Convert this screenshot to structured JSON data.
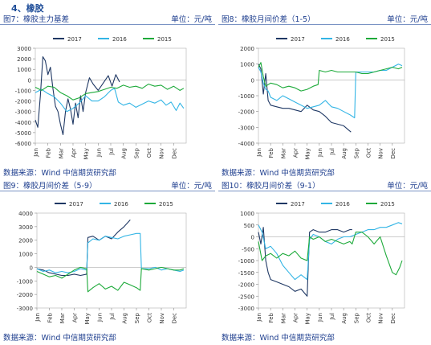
{
  "section": {
    "title": "4、橡胶"
  },
  "colors": {
    "2017": "#1f3864",
    "2016": "#33b5e5",
    "2015": "#1daa3a"
  },
  "panels": [
    {
      "figure": "图7：橡胶主力基差",
      "unit": "单位：元/吨",
      "source": "数据来源：Wind 中信期货研究部"
    },
    {
      "figure": "图8：橡胶月间价差（1-5）",
      "unit": "单位：元/吨",
      "source": "数据来源：Wind 中信期货研究部"
    },
    {
      "figure": "图9：橡胶月间价差（5-9）",
      "unit": "单位：元/吨",
      "source": "数据来源：Wind 中信期货研究部"
    },
    {
      "figure": "图10：橡胶月间价差（9-1）",
      "unit": "单位：元/吨",
      "source": "数据来源：Wind 中信期货研究部"
    }
  ],
  "chart_data": [
    {
      "type": "line",
      "ylim": [
        -6000,
        3000
      ],
      "yticks": [
        3000,
        2000,
        1000,
        0,
        -1000,
        -2000,
        -3000,
        -4000,
        -5000,
        -6000
      ],
      "xticks": [
        "Jan",
        "Feb",
        "Mar",
        "Apr",
        "May",
        "Jun",
        "Jul",
        "Aug",
        "Sep",
        "Oct",
        "Nov",
        "Dec"
      ],
      "legend_position": "top",
      "series": [
        {
          "name": "2017",
          "x": [
            0,
            0.2,
            0.4,
            0.6,
            0.8,
            1.0,
            1.2,
            1.4,
            1.6,
            1.8,
            2.0,
            2.2,
            2.4,
            2.6,
            2.8,
            3.0,
            3.2,
            3.4,
            3.6,
            3.8,
            4.0,
            4.3,
            4.6,
            5.0,
            5.4,
            5.8,
            6.1,
            6.4,
            6.7
          ],
          "y": [
            -3800,
            -4500,
            -1500,
            2200,
            1800,
            500,
            1200,
            -800,
            -2500,
            -3000,
            -4200,
            -5200,
            -3000,
            -1800,
            -2800,
            -4200,
            -2200,
            -3600,
            -1500,
            -3000,
            -1200,
            200,
            -400,
            -1000,
            -300,
            400,
            -600,
            500,
            -200
          ]
        },
        {
          "name": "2016",
          "x": [
            0,
            0.5,
            1.0,
            1.5,
            2.0,
            2.5,
            3.0,
            3.5,
            4.0,
            4.5,
            5.0,
            5.5,
            6.0,
            6.3,
            6.6,
            7.0,
            7.5,
            8.0,
            8.5,
            9.0,
            9.5,
            10.0,
            10.4,
            10.8,
            11.2,
            11.5,
            11.8
          ],
          "y": [
            -1200,
            -900,
            -1300,
            -1600,
            -2200,
            -3000,
            -2700,
            -2200,
            -1500,
            -2000,
            -2000,
            -1600,
            -1000,
            -800,
            -2100,
            -2400,
            -2200,
            -2600,
            -2300,
            -2000,
            -2200,
            -1900,
            -2400,
            -2100,
            -2900,
            -2200,
            -2700
          ]
        },
        {
          "name": "2015",
          "x": [
            0,
            0.5,
            1.0,
            1.5,
            2.0,
            2.5,
            3.0,
            3.5,
            4.0,
            4.5,
            5.0,
            5.5,
            6.0,
            6.5,
            7.0,
            7.5,
            8.0,
            8.5,
            9.0,
            9.5,
            10.0,
            10.5,
            11.0,
            11.5,
            11.8
          ],
          "y": [
            -700,
            -1000,
            -600,
            -700,
            -1200,
            -1500,
            -1900,
            -1700,
            -1300,
            -1200,
            -1100,
            -900,
            -700,
            -800,
            -500,
            -700,
            -600,
            -800,
            -400,
            -600,
            -500,
            -900,
            -600,
            -1000,
            -800
          ]
        }
      ]
    },
    {
      "type": "line",
      "ylim": [
        -4000,
        2000
      ],
      "yticks": [
        2000,
        1000,
        0,
        -1000,
        -2000,
        -3000,
        -4000
      ],
      "xticks": [
        "Jan",
        "Feb",
        "Mar",
        "Apr",
        "May",
        "Jun",
        "Jul",
        "Aug",
        "Sep",
        "Oct",
        "Nov",
        "Dec"
      ],
      "legend_position": "top",
      "series": [
        {
          "name": "2017",
          "x": [
            0,
            0.2,
            0.4,
            0.6,
            0.8,
            1.0,
            1.5,
            2.0,
            2.5,
            3.0,
            3.5,
            4.0,
            4.5,
            5.0,
            5.5,
            6.0,
            6.5,
            7.0,
            7.3,
            7.6
          ],
          "y": [
            1000,
            700,
            -900,
            400,
            -1300,
            -1600,
            -1700,
            -1800,
            -1800,
            -1900,
            -2000,
            -1600,
            -1900,
            -2000,
            -2300,
            -2700,
            -2800,
            -2900,
            -3100,
            -3300
          ]
        },
        {
          "name": "2016",
          "x": [
            0,
            0.2,
            0.4,
            0.6,
            0.8,
            1.0,
            1.5,
            2.0,
            2.5,
            3.0,
            3.5,
            4.0,
            4.5,
            5.0,
            5.5,
            6.0,
            6.5,
            7.0,
            7.5,
            7.9,
            8.0,
            8.5,
            9.0,
            9.5,
            10.0,
            10.5,
            11.0,
            11.5,
            11.8
          ],
          "y": [
            800,
            500,
            -200,
            -600,
            -700,
            -1100,
            -1300,
            -1000,
            -1200,
            -1400,
            -1600,
            -1800,
            -1700,
            -1600,
            -1300,
            -1700,
            -1800,
            -2000,
            -2200,
            -2400,
            500,
            500,
            500,
            500,
            600,
            600,
            800,
            1000,
            900
          ]
        },
        {
          "name": "2015",
          "x": [
            0,
            0.2,
            0.4,
            0.6,
            1.0,
            1.5,
            2.0,
            2.5,
            3.0,
            3.5,
            4.0,
            4.5,
            4.9,
            5.0,
            5.5,
            6.0,
            6.5,
            7.0,
            7.5,
            8.0,
            8.5,
            9.0,
            9.5,
            10.0,
            10.5,
            11.0,
            11.5,
            11.8
          ],
          "y": [
            800,
            1100,
            200,
            -400,
            -200,
            -300,
            -500,
            -400,
            -500,
            -700,
            -600,
            -400,
            -300,
            600,
            500,
            600,
            500,
            500,
            500,
            500,
            400,
            400,
            500,
            600,
            700,
            800,
            700,
            800
          ]
        }
      ]
    },
    {
      "type": "line",
      "ylim": [
        -3000,
        4000
      ],
      "yticks": [
        4000,
        3000,
        2000,
        1000,
        0,
        -1000,
        -2000,
        -3000
      ],
      "xticks": [
        "Jan",
        "Feb",
        "Mar",
        "Apr",
        "May",
        "Jun",
        "Jul",
        "Aug",
        "Sep",
        "Oct",
        "Nov",
        "Dec"
      ],
      "legend_position": "top",
      "series": [
        {
          "name": "2017",
          "x": [
            0,
            0.5,
            1.0,
            1.5,
            2.0,
            2.5,
            3.0,
            3.5,
            4.0,
            4.1,
            4.5,
            5.0,
            5.5,
            6.0,
            6.5,
            7.0,
            7.5
          ],
          "y": [
            -100,
            -200,
            -400,
            -500,
            -600,
            -600,
            -500,
            -600,
            -500,
            2200,
            2300,
            2000,
            2300,
            2100,
            2600,
            3000,
            3500
          ]
        },
        {
          "name": "2016",
          "x": [
            0,
            0.5,
            1.0,
            1.5,
            2.0,
            2.5,
            3.0,
            3.5,
            4.0,
            4.1,
            4.5,
            5.0,
            5.5,
            6.0,
            6.5,
            7.0,
            7.5,
            8.0,
            8.3,
            8.4,
            9.0,
            9.5,
            10.0,
            10.5,
            11.0,
            11.5,
            11.8
          ],
          "y": [
            -100,
            -300,
            -200,
            -400,
            -300,
            -400,
            -300,
            -100,
            -200,
            1800,
            2100,
            2000,
            2300,
            2200,
            2100,
            2300,
            2400,
            2500,
            2500,
            -100,
            -100,
            0,
            -200,
            -100,
            -200,
            -300,
            -200
          ]
        },
        {
          "name": "2015",
          "x": [
            0,
            0.5,
            1.0,
            1.5,
            2.0,
            2.5,
            3.0,
            3.5,
            4.0,
            4.1,
            4.5,
            5.0,
            5.5,
            6.0,
            6.5,
            7.0,
            7.5,
            8.0,
            8.3,
            8.4,
            9.0,
            9.5,
            10.0,
            10.5,
            11.0,
            11.5,
            11.8
          ],
          "y": [
            -300,
            -500,
            -700,
            -600,
            -800,
            -500,
            -200,
            0,
            -100,
            -1800,
            -1500,
            -1200,
            -1600,
            -1400,
            -1700,
            -1100,
            -1300,
            -1500,
            -1700,
            -100,
            -200,
            -100,
            0,
            -100,
            -200,
            -200,
            -100
          ]
        }
      ]
    },
    {
      "type": "line",
      "ylim": [
        -3000,
        1000
      ],
      "yticks": [
        1000,
        500,
        0,
        -500,
        -1000,
        -1500,
        -2000,
        -2500,
        -3000
      ],
      "xticks": [
        "Jan",
        "Feb",
        "Mar",
        "Apr",
        "May",
        "Jun",
        "Jul",
        "Aug",
        "Sep",
        "Oct",
        "Nov",
        "Dec"
      ],
      "legend_position": "top",
      "series": [
        {
          "name": "2017",
          "x": [
            0,
            0.2,
            0.4,
            0.6,
            0.8,
            1.0,
            1.5,
            2.0,
            2.5,
            3.0,
            3.5,
            4.0,
            4.2,
            4.5,
            5.0,
            5.5,
            6.0,
            6.5,
            7.0,
            7.5,
            7.7
          ],
          "y": [
            200,
            -300,
            400,
            -1000,
            -1500,
            -1800,
            -1900,
            -2000,
            -2100,
            -2300,
            -2200,
            -2500,
            200,
            300,
            200,
            200,
            300,
            300,
            200,
            300,
            300
          ]
        },
        {
          "name": "2016",
          "x": [
            0,
            0.3,
            0.6,
            1.0,
            1.5,
            2.0,
            2.5,
            3.0,
            3.5,
            4.0,
            4.2,
            4.5,
            5.0,
            5.5,
            6.0,
            6.5,
            7.0,
            7.5,
            8.0,
            8.5,
            9.0,
            9.5,
            10.0,
            10.5,
            11.0,
            11.5,
            11.8
          ],
          "y": [
            500,
            200,
            -500,
            -400,
            -700,
            -1200,
            -1500,
            -1800,
            -1600,
            -1800,
            -100,
            100,
            0,
            -200,
            -300,
            -100,
            0,
            0,
            100,
            200,
            300,
            300,
            400,
            400,
            500,
            600,
            550
          ]
        },
        {
          "name": "2015",
          "x": [
            0,
            0.3,
            0.6,
            1.0,
            1.5,
            2.0,
            2.5,
            3.0,
            3.5,
            4.0,
            4.2,
            4.5,
            5.0,
            5.5,
            6.0,
            6.5,
            7.0,
            7.5,
            7.7,
            8.0,
            8.5,
            9.0,
            9.5,
            10.0,
            10.5,
            11.0,
            11.3,
            11.6,
            11.8
          ],
          "y": [
            -200,
            -1000,
            -800,
            -700,
            -900,
            -700,
            -800,
            -600,
            -900,
            -1000,
            0,
            -100,
            0,
            -200,
            -100,
            -200,
            -300,
            -200,
            -300,
            200,
            200,
            0,
            -300,
            0,
            -800,
            -1500,
            -1600,
            -1300,
            -1000
          ]
        }
      ]
    }
  ]
}
